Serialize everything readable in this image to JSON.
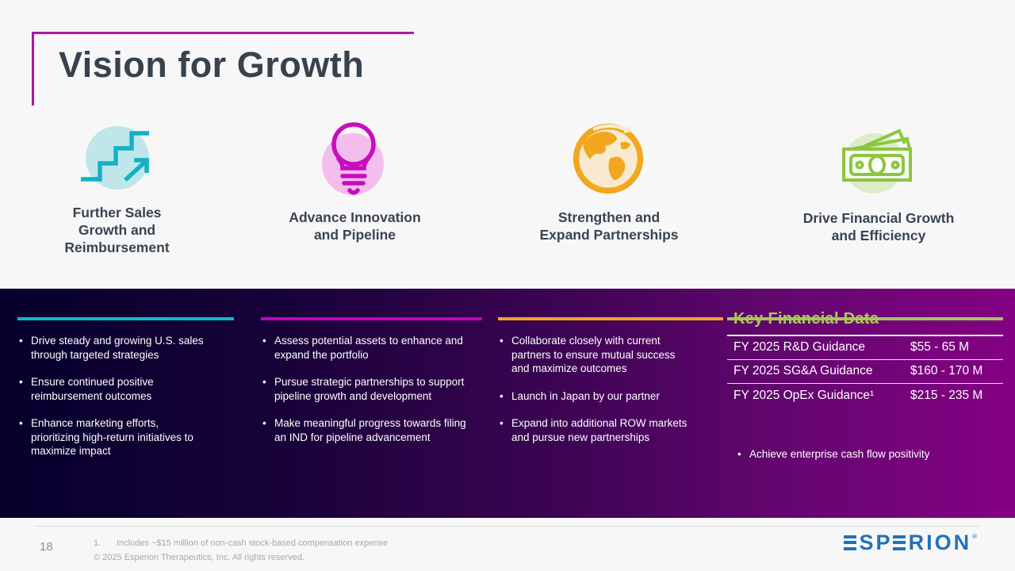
{
  "header": {
    "title": "Vision for Growth"
  },
  "pillars": [
    {
      "label": "Further Sales\nGrowth and\nReimbursement",
      "accent": "#17b6c9",
      "bullets": [
        "Drive steady and growing U.S. sales through targeted strategies",
        "Ensure continued positive reimbursement outcomes",
        "Enhance marketing efforts, prioritizing high-return initiatives to maximize impact"
      ]
    },
    {
      "label": "Advance Innovation\nand Pipeline",
      "accent": "#c303b9",
      "bullets": [
        "Assess potential assets to enhance and expand the portfolio",
        "Pursue strategic partnerships to support pipeline growth and development",
        "Make meaningful progress towards filing an IND for pipeline advancement"
      ]
    },
    {
      "label": "Strengthen and\nExpand Partnerships",
      "accent": "#f2a324",
      "bullets": [
        "Collaborate closely with current partners to ensure mutual success and maximize outcomes",
        "Launch in Japan by our partner",
        "Expand into additional ROW markets and pursue new partnerships"
      ]
    },
    {
      "label": "Drive Financial Growth\nand Efficiency",
      "accent": "#a5c45e",
      "bullets": []
    }
  ],
  "financial_panel": {
    "heading": "Key Financial Data",
    "rows": [
      {
        "label": "FY 2025 R&D Guidance",
        "value": "$55 - 65 M"
      },
      {
        "label": "FY 2025 SG&A Guidance",
        "value": "$160 - 170 M"
      },
      {
        "label": "FY 2025 OpEx Guidance¹",
        "value": "$215 - 235 M"
      }
    ],
    "bullet": "Achieve enterprise cash flow positivity"
  },
  "footer": {
    "page_number": "18",
    "footnote_number": "1.",
    "footnote_text": "Includes ~$15 million of non-cash stock-based compensation expense",
    "copyright": "© 2025 Esperion Therapeutics, Inc. All rights reserved.",
    "logo_text": "ESPERION",
    "logo_mark": "®"
  },
  "colors": {
    "background": "#f7f7f8",
    "title_text": "#38424d",
    "frame_magenta": "#ad17a2",
    "band_left": "#06002c",
    "band_right": "#840183",
    "accent_teal": "#17b6c9",
    "accent_magenta": "#c303b9",
    "accent_orange": "#f2a324",
    "accent_green": "#a5c45e",
    "financial_heading_green": "#a9cb55",
    "logo_blue": "#2272b8"
  }
}
